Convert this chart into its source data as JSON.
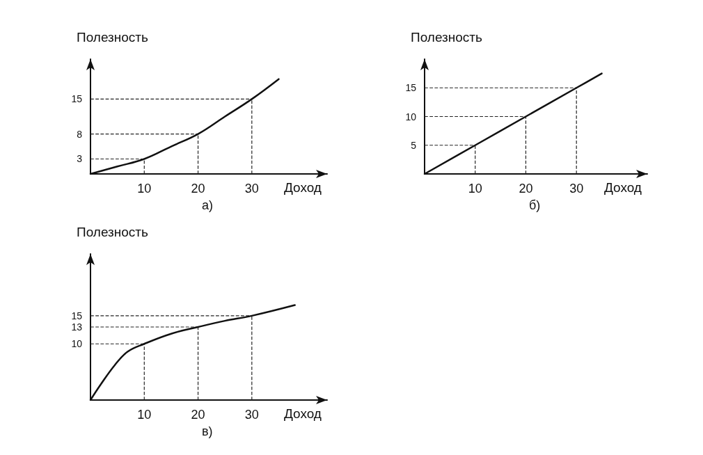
{
  "chart_data": [
    {
      "type": "line",
      "xlabel": "Доход",
      "ylabel": "Полезность",
      "annotations": [
        "а)"
      ],
      "x": [
        0,
        5,
        10,
        15,
        20,
        25,
        30,
        35
      ],
      "series": [
        {
          "color": "#111111",
          "values": [
            0,
            1.5,
            3,
            5.5,
            8,
            11.5,
            15,
            19
          ]
        }
      ],
      "xlim": [
        0,
        44
      ],
      "xticks": [
        10,
        20,
        30
      ],
      "ylim": [
        0,
        23
      ],
      "yticks": [
        3,
        8,
        15
      ],
      "marker": "none",
      "ref_lines": [
        {
          "axis": "x",
          "value": 10,
          "line_style": "dashed"
        },
        {
          "axis": "x",
          "value": 20,
          "line_style": "dashed"
        },
        {
          "axis": "x",
          "value": 30,
          "line_style": "dashed"
        },
        {
          "axis": "y",
          "value": 3,
          "line_style": "dashed"
        },
        {
          "axis": "y",
          "value": 8,
          "line_style": "dashed"
        },
        {
          "axis": "y",
          "value": 15,
          "line_style": "dashed"
        }
      ]
    },
    {
      "type": "line",
      "xlabel": "Доход",
      "ylabel": "Полезность",
      "annotations": [
        "б)"
      ],
      "x": [
        0,
        10,
        20,
        30,
        35
      ],
      "series": [
        {
          "color": "#111111",
          "values": [
            0,
            5,
            10,
            15,
            17.5
          ]
        }
      ],
      "xlim": [
        0,
        44
      ],
      "xticks": [
        10,
        20,
        30
      ],
      "ylim": [
        0,
        20
      ],
      "yticks": [
        5,
        10,
        15
      ],
      "marker": "none",
      "ref_lines": [
        {
          "axis": "x",
          "value": 10,
          "line_style": "dashed"
        },
        {
          "axis": "x",
          "value": 20,
          "line_style": "dashed"
        },
        {
          "axis": "x",
          "value": 30,
          "line_style": "dashed"
        },
        {
          "axis": "y",
          "value": 5,
          "line_style": "dashed"
        },
        {
          "axis": "y",
          "value": 10,
          "line_style": "dashed"
        },
        {
          "axis": "y",
          "value": 15,
          "line_style": "dashed"
        }
      ]
    },
    {
      "type": "line",
      "xlabel": "Доход",
      "ylabel": "Полезность",
      "annotations": [
        "в)"
      ],
      "x": [
        0,
        2,
        4.5,
        6.9,
        10,
        15,
        20,
        25,
        30,
        38
      ],
      "series": [
        {
          "color": "#111111",
          "values": [
            0,
            2.9,
            6.2,
            8.6,
            10,
            11.8,
            13,
            14.1,
            15,
            16.9
          ]
        }
      ],
      "xlim": [
        0,
        44
      ],
      "xticks": [
        10,
        20,
        30
      ],
      "ylim": [
        0,
        26
      ],
      "yticks": [
        10,
        13,
        15
      ],
      "marker": "none",
      "ref_lines": [
        {
          "axis": "x",
          "value": 10,
          "line_style": "dashed"
        },
        {
          "axis": "x",
          "value": 20,
          "line_style": "dashed"
        },
        {
          "axis": "x",
          "value": 30,
          "line_style": "dashed"
        },
        {
          "axis": "y",
          "value": 10,
          "line_style": "dashed"
        },
        {
          "axis": "y",
          "value": 13,
          "line_style": "dashed"
        },
        {
          "axis": "y",
          "value": 15,
          "line_style": "dashed"
        }
      ]
    }
  ]
}
